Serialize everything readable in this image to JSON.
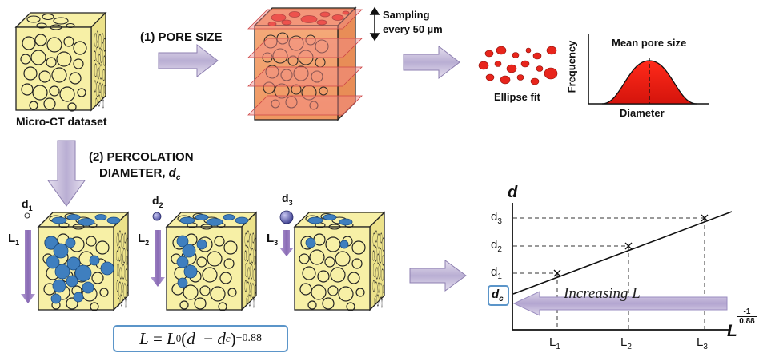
{
  "steps": {
    "pore_size": "(1) PORE SIZE",
    "percolation_line1": "(2) PERCOLATION",
    "percolation_line2": "DIAMETER, ",
    "percolation_symbol": "d",
    "percolation_sub": "c"
  },
  "labels": {
    "micro_ct": "Micro-CT dataset",
    "sampling_line1": "Sampling",
    "sampling_line2": "every 50 µm",
    "ellipse_fit": "Ellipse fit",
    "mean_pore_size": "Mean pore size",
    "frequency": "Frequency",
    "diameter": "Diameter"
  },
  "probes": [
    {
      "d": "d",
      "d_sub": "1",
      "L": "L",
      "L_sub": "1"
    },
    {
      "d": "d",
      "d_sub": "2",
      "L": "L",
      "L_sub": "2"
    },
    {
      "d": "d",
      "d_sub": "3",
      "L": "L",
      "L_sub": "3"
    }
  ],
  "formula": {
    "lhs": "L",
    "eq": " = ",
    "L0": "L",
    "L0_sub": "0",
    "open": "(",
    "d": "d",
    "minus": "  − ",
    "dc": "d",
    "dc_sub": "c",
    "close": ")",
    "exp": "−0.88"
  },
  "plot": {
    "y_axis": "d",
    "x_axis": "L",
    "x_exp_num": "-1",
    "x_exp_den": "0.88",
    "y_ticks": [
      {
        "base": "d",
        "sub": "3"
      },
      {
        "base": "d",
        "sub": "2"
      },
      {
        "base": "d",
        "sub": "1"
      }
    ],
    "x_ticks": [
      {
        "base": "L",
        "sub": "1"
      },
      {
        "base": "L",
        "sub": "2"
      },
      {
        "base": "L",
        "sub": "3"
      }
    ],
    "dc_base": "d",
    "dc_sub": "c",
    "arrow_text": "Increasing L"
  },
  "colors": {
    "cube_fill": "#f7f0a6",
    "arrow_fill": "#c9bedd",
    "arrow_dark": "#8b73ae",
    "pore_red": "#e8251c",
    "pore_blue": "#3f7fbf",
    "box_blue": "#5b95c9"
  }
}
